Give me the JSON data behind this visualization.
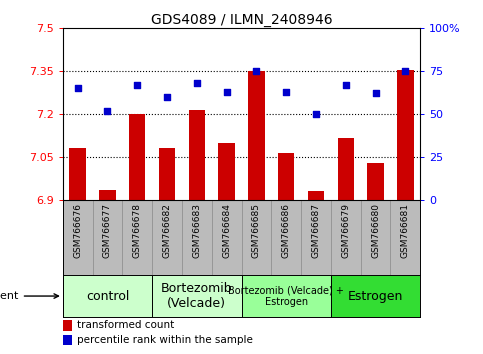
{
  "title": "GDS4089 / ILMN_2408946",
  "samples": [
    "GSM766676",
    "GSM766677",
    "GSM766678",
    "GSM766682",
    "GSM766683",
    "GSM766684",
    "GSM766685",
    "GSM766686",
    "GSM766687",
    "GSM766679",
    "GSM766680",
    "GSM766681"
  ],
  "bar_values": [
    7.08,
    6.935,
    7.2,
    7.08,
    7.215,
    7.1,
    7.35,
    7.065,
    6.93,
    7.115,
    7.03,
    7.355
  ],
  "scatter_values": [
    65,
    52,
    67,
    60,
    68,
    63,
    75,
    63,
    50,
    67,
    62,
    75
  ],
  "bar_color": "#cc0000",
  "scatter_color": "#0000cc",
  "ylim_left": [
    6.9,
    7.5
  ],
  "ylim_right": [
    0,
    100
  ],
  "yticks_left": [
    6.9,
    7.05,
    7.2,
    7.35,
    7.5
  ],
  "yticks_right": [
    0,
    25,
    50,
    75,
    100
  ],
  "ytick_labels_left": [
    "6.9",
    "7.05",
    "7.2",
    "7.35",
    "7.5"
  ],
  "ytick_labels_right": [
    "0",
    "25",
    "50",
    "75",
    "100%"
  ],
  "hlines": [
    7.05,
    7.2,
    7.35
  ],
  "groups": [
    {
      "label": "control",
      "start": 0,
      "end": 2,
      "color": "#ccffcc",
      "fontsize": 9
    },
    {
      "label": "Bortezomib\n(Velcade)",
      "start": 3,
      "end": 5,
      "color": "#ccffcc",
      "fontsize": 9
    },
    {
      "label": "Bortezomib (Velcade) +\nEstrogen",
      "start": 6,
      "end": 8,
      "color": "#99ff99",
      "fontsize": 7
    },
    {
      "label": "Estrogen",
      "start": 9,
      "end": 11,
      "color": "#33dd33",
      "fontsize": 9
    }
  ],
  "legend_bar_label": "transformed count",
  "legend_scatter_label": "percentile rank within the sample",
  "agent_label": "agent",
  "bar_bottom": 6.9,
  "xtick_bg_color": "#bbbbbb",
  "group_border_color": "#000000",
  "cell_border_color": "#888888"
}
